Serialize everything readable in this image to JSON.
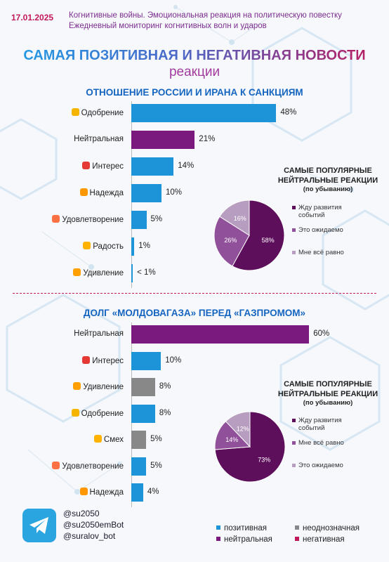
{
  "header": {
    "date": "17.01.2025",
    "line1": "Когнитивные войны. Эмоциональная реакция на политическую повестку",
    "line2": "Ежедневный мониторинг когнитивных волн и ударов"
  },
  "title": {
    "main": "САМАЯ ПОЗИТИВНАЯ И НЕГАТИВНАЯ НОВОСТИ",
    "sub": "реакции"
  },
  "colors": {
    "positive": "#1e94d8",
    "neutral": "#7a1a7e",
    "ambiguous": "#888888",
    "negative": "#c2185b",
    "pie_dark": "#5e0f5c",
    "pie_mid": "#91509a",
    "pie_light": "#b79dbf"
  },
  "chart_data": [
    {
      "type": "bar",
      "title": "ОТНОШЕНИЕ РОССИИ И ИРАНА К САНКЦИЯМ",
      "categories": [
        "Одобрение",
        "Нейтральная",
        "Интерес",
        "Надежда",
        "Удовлетворение",
        "Радость",
        "Удивление"
      ],
      "values": [
        48,
        21,
        14,
        10,
        5,
        1,
        0.5
      ],
      "value_labels": [
        "48%",
        "21%",
        "14%",
        "10%",
        "5%",
        "1%",
        "< 1%"
      ],
      "groups": [
        "positive",
        "neutral",
        "positive",
        "positive",
        "positive",
        "positive",
        "positive"
      ],
      "emoji_colors": [
        "#f4b400",
        "",
        "#e53935",
        "#ff9800",
        "#ff7043",
        "#ffb300",
        "#ffa000"
      ]
    },
    {
      "type": "pie",
      "title": "САМЫЕ ПОПУЛЯРНЫЕ НЕЙТРАЛЬНЫЕ РЕАКЦИИ",
      "subtitle": "(по убыванию)",
      "slices": [
        {
          "label": "Жду развития событий",
          "value": 58,
          "value_label": "58%",
          "color": "#5e0f5c"
        },
        {
          "label": "Это ожидаемо",
          "value": 26,
          "value_label": "26%",
          "color": "#91509a"
        },
        {
          "label": "Мне всё равно",
          "value": 16,
          "value_label": "16%",
          "color": "#b79dbf"
        }
      ]
    },
    {
      "type": "bar",
      "title": "ДОЛГ «МОЛДОВАГАЗА» ПЕРЕД «ГАЗПРОМОМ»",
      "categories": [
        "Нейтральная",
        "Интерес",
        "Удивление",
        "Одобрение",
        "Смех",
        "Удовлетворение",
        "Надежда"
      ],
      "values": [
        60,
        10,
        8,
        8,
        5,
        5,
        4
      ],
      "value_labels": [
        "60%",
        "10%",
        "8%",
        "8%",
        "5%",
        "5%",
        "4%"
      ],
      "groups": [
        "neutral",
        "positive",
        "ambiguous",
        "positive",
        "ambiguous",
        "positive",
        "positive"
      ],
      "emoji_colors": [
        "",
        "#e53935",
        "#ffa000",
        "#f4b400",
        "#ffb300",
        "#ff7043",
        "#ff9800"
      ]
    },
    {
      "type": "pie",
      "title": "САМЫЕ ПОПУЛЯРНЫЕ НЕЙТРАЛЬНЫЕ РЕАКЦИИ",
      "subtitle": "(по убыванию)",
      "slices": [
        {
          "label": "Жду развития событий",
          "value": 73,
          "value_label": "73%",
          "color": "#5e0f5c"
        },
        {
          "label": "Мне всё равно",
          "value": 14,
          "value_label": "14%",
          "color": "#91509a"
        },
        {
          "label": "Это ожидаемо",
          "value": 12,
          "value_label": "12%",
          "color": "#b79dbf"
        }
      ]
    }
  ],
  "contacts": [
    "@su2050",
    "@su2050emBot",
    "@suralov_bot"
  ],
  "legend": {
    "positive": "позитивная",
    "ambiguous": "неоднозначная",
    "neutral": "нейтральная",
    "negative": "негативная"
  },
  "icons": {
    "telegram": "telegram-icon"
  }
}
